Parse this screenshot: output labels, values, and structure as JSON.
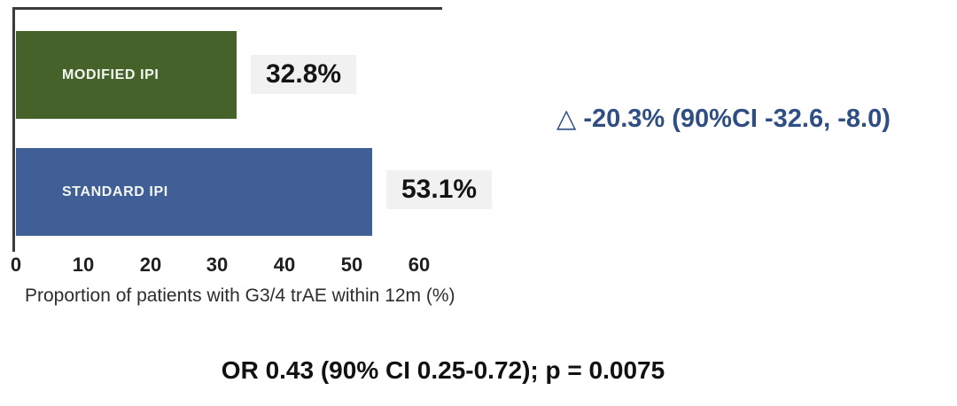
{
  "chart_data": {
    "type": "bar",
    "orientation": "horizontal",
    "title": "",
    "categories": [
      "MODIFIED IPI",
      "STANDARD IPI"
    ],
    "values": [
      32.8,
      53.1
    ],
    "value_labels": [
      "32.8%",
      "53.1%"
    ],
    "bar_colors": [
      "#45622b",
      "#3f5f96"
    ],
    "x_ticks": [
      "0",
      "10",
      "20",
      "30",
      "40",
      "50",
      "60"
    ],
    "xlim": [
      0,
      65
    ],
    "xlabel": "Proportion of patients with G3/4 trAE within 12m (%)",
    "grid": false,
    "legend": false
  },
  "annotation": {
    "delta_symbol": "△",
    "text": "-20.3% (90%CI -32.6, -8.0)",
    "color": "#2f4e84"
  },
  "footer": {
    "text": "OR 0.43 (90% CI 0.25-0.72); p = 0.0075"
  }
}
